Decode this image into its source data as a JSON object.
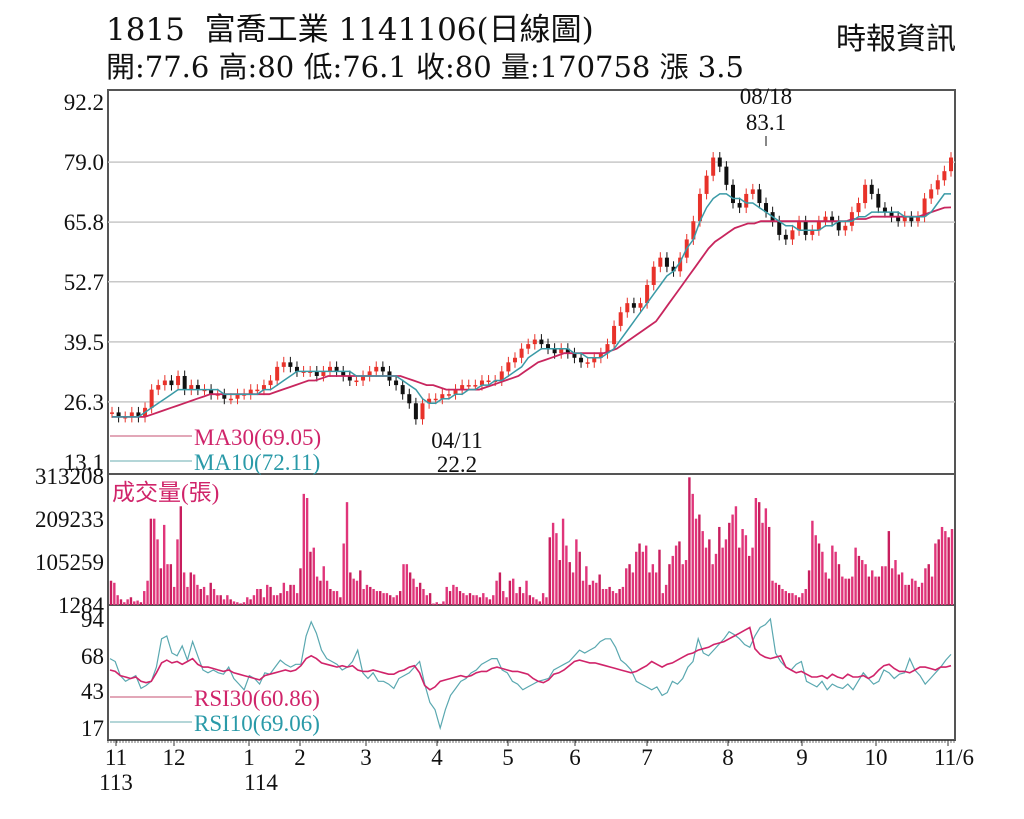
{
  "header": {
    "stock_code": "1815",
    "title": "1815  富喬工業 1141106(日線圖)",
    "ohlc_line": "開:77.6 高:80 低:76.1 收:80 量:170758 漲 3.5",
    "open": "77.6",
    "high": "80",
    "low": "76.1",
    "close": "80",
    "volume": "170758",
    "change": "漲 3.5",
    "source": "時報資訊"
  },
  "colors": {
    "up_candle": "#e8322a",
    "down_candle": "#111111",
    "ma30": "#c8265e",
    "ma10": "#3a9aa6",
    "volume": "#e0357a",
    "rsi30": "#d0246a",
    "rsi10": "#5aa8b0",
    "grid": "#c8c8c8",
    "frame": "#555555"
  },
  "chart_data": [
    {
      "type": "candlestick",
      "title": "1815 富喬工業 1141106(日線圖)",
      "yaxis_ticks": [
        "92.2",
        "79.0",
        "65.8",
        "52.7",
        "39.5",
        "26.3",
        "13.1"
      ],
      "ylim": [
        13.1,
        92.2
      ],
      "annotations": [
        {
          "date": "08/18",
          "value": "83.1",
          "label": "high"
        },
        {
          "date": "04/11",
          "value": "22.2",
          "label": "low"
        }
      ],
      "legend": [
        {
          "name": "MA30",
          "value": "MA30(69.05)"
        },
        {
          "name": "MA10",
          "value": "MA10(72.11)"
        }
      ],
      "x_month_labels": [
        "11",
        "12",
        "1",
        "2",
        "3",
        "4",
        "5",
        "6",
        "7",
        "8",
        "9",
        "10",
        "11/6"
      ],
      "x_year_labels": [
        {
          "month": "11",
          "year": "113"
        },
        {
          "month": "1",
          "year": "114"
        }
      ],
      "close_path": [
        24,
        23,
        23,
        24,
        23,
        25,
        29,
        30,
        31,
        30,
        32,
        29,
        30,
        29,
        29,
        28,
        28,
        27,
        27,
        28,
        28,
        29,
        29,
        30,
        31,
        34,
        35,
        34,
        33,
        33,
        33,
        32,
        33,
        34,
        33,
        32,
        31,
        31,
        32,
        33,
        34,
        33,
        31,
        30,
        28,
        26,
        22.5,
        26,
        27,
        27,
        28,
        28,
        29,
        30,
        30,
        30,
        31,
        31,
        31,
        33,
        35,
        36,
        38,
        39,
        40,
        39,
        38,
        37,
        38,
        37,
        36,
        35,
        35,
        36,
        37,
        39,
        43,
        46,
        48,
        47,
        48,
        52,
        56,
        58,
        56,
        55,
        58,
        62,
        66,
        72,
        76,
        80,
        78,
        74,
        70,
        69,
        72,
        73,
        70,
        68,
        66,
        63,
        62,
        64,
        66,
        63,
        64,
        66,
        67,
        66,
        64,
        65,
        68,
        70,
        74,
        72,
        69,
        68,
        67,
        66,
        67,
        66,
        67,
        71,
        73,
        75,
        77,
        80
      ],
      "ma10_path": [
        23,
        23,
        23,
        23,
        23,
        24,
        25,
        26,
        27,
        28,
        29,
        29,
        29,
        29,
        29,
        29,
        29,
        28,
        28,
        28,
        28,
        28,
        28,
        29,
        29,
        30,
        31,
        32,
        33,
        33,
        33,
        33,
        33,
        33,
        33,
        33,
        33,
        32,
        32,
        32,
        32,
        32,
        32,
        32,
        31,
        30,
        29,
        27,
        26,
        26,
        27,
        27,
        28,
        28,
        29,
        29,
        30,
        30,
        31,
        31,
        32,
        33,
        34,
        36,
        37,
        38,
        38,
        38,
        38,
        38,
        37,
        37,
        36,
        36,
        36,
        37,
        38,
        40,
        42,
        44,
        46,
        48,
        50,
        52,
        54,
        55,
        57,
        60,
        62,
        66,
        69,
        71,
        72,
        72,
        71,
        71,
        70,
        70,
        69,
        68,
        67,
        66,
        65,
        65,
        64,
        64,
        64,
        64,
        65,
        65,
        66,
        66,
        66,
        67,
        67,
        68,
        68,
        68,
        68,
        68,
        67,
        67,
        67,
        67,
        68,
        70,
        72,
        72
      ],
      "ma30_path": [
        23,
        23,
        23,
        23,
        23,
        23,
        23.5,
        24,
        24.5,
        25,
        25.5,
        26,
        26.5,
        27,
        27.5,
        28,
        28,
        28,
        28,
        28,
        28,
        28,
        28,
        28,
        28,
        28.5,
        29,
        29.5,
        30,
        30.5,
        31,
        31,
        31.5,
        32,
        32,
        32,
        32,
        32,
        32,
        32,
        32,
        32,
        32,
        32,
        32,
        31.5,
        31,
        30.5,
        30,
        30,
        29.5,
        29,
        29,
        29,
        29,
        29,
        29,
        29.5,
        30,
        30.5,
        31,
        31.5,
        32,
        33,
        34,
        35,
        35.5,
        36,
        36.5,
        37,
        37,
        37,
        37,
        37,
        37,
        37,
        37.5,
        38,
        39,
        40,
        41,
        42,
        43,
        44,
        46,
        48,
        50,
        52,
        54,
        56,
        58,
        60,
        61.5,
        62.5,
        63.5,
        64.5,
        65,
        65.5,
        65.5,
        66,
        66,
        66,
        66,
        66,
        66,
        66,
        66,
        66,
        66,
        66,
        66,
        66,
        66,
        66.5,
        66.5,
        66.5,
        67,
        67,
        67,
        67,
        67,
        67,
        67,
        67,
        67.5,
        68,
        68.5,
        69,
        69.05
      ]
    },
    {
      "type": "bar",
      "title": "成交量(張)",
      "yaxis_ticks": [
        "313208",
        "209233",
        "105259",
        "1284"
      ],
      "ylim": [
        1284,
        313208
      ],
      "values": [
        60000,
        55000,
        25000,
        15000,
        8000,
        15000,
        20000,
        10000,
        12000,
        8000,
        35000,
        60000,
        210000,
        210000,
        160000,
        90000,
        195000,
        100000,
        100000,
        45000,
        160000,
        240000,
        80000,
        45000,
        80000,
        75000,
        50000,
        40000,
        45000,
        25000,
        55000,
        40000,
        25000,
        25000,
        15000,
        25000,
        15000,
        10000,
        8000,
        5000,
        8000,
        20000,
        15000,
        25000,
        40000,
        40000,
        20000,
        50000,
        45000,
        25000,
        25000,
        30000,
        55000,
        35000,
        50000,
        50000,
        30000,
        90000,
        270000,
        260000,
        130000,
        140000,
        70000,
        60000,
        95000,
        60000,
        40000,
        35000,
        35000,
        20000,
        150000,
        250000,
        80000,
        65000,
        60000,
        85000,
        40000,
        50000,
        45000,
        40000,
        35000,
        35000,
        30000,
        30000,
        25000,
        20000,
        25000,
        35000,
        100000,
        100000,
        80000,
        65000,
        45000,
        55000,
        40000,
        25000,
        30000,
        5000,
        8000,
        4000,
        10000,
        45000,
        35000,
        50000,
        45000,
        35000,
        30000,
        25000,
        30000,
        25000,
        25000,
        20000,
        30000,
        20000,
        15000,
        25000,
        60000,
        80000,
        35000,
        20000,
        60000,
        65000,
        30000,
        45000,
        30000,
        60000,
        25000,
        20000,
        15000,
        10000,
        30000,
        20000,
        165000,
        200000,
        175000,
        110000,
        210000,
        145000,
        105000,
        80000,
        160000,
        130000,
        60000,
        95000,
        50000,
        60000,
        55000,
        75000,
        40000,
        40000,
        45000,
        35000,
        30000,
        40000,
        45000,
        90000,
        100000,
        80000,
        130000,
        150000,
        130000,
        145000,
        80000,
        100000,
        80000,
        135000,
        30000,
        50000,
        100000,
        120000,
        145000,
        155000,
        100000,
        110000,
        310000,
        270000,
        210000,
        220000,
        180000,
        140000,
        160000,
        100000,
        125000,
        190000,
        140000,
        160000,
        200000,
        220000,
        240000,
        140000,
        185000,
        170000,
        120000,
        140000,
        260000,
        250000,
        200000,
        235000,
        190000,
        60000,
        55000,
        50000,
        40000,
        35000,
        30000,
        30000,
        25000,
        20000,
        30000,
        40000,
        85000,
        205000,
        170000,
        150000,
        130000,
        80000,
        65000,
        145000,
        130000,
        100000,
        70000,
        65000,
        65000,
        70000,
        140000,
        120000,
        110000,
        100000,
        70000,
        85000,
        70000,
        70000,
        95000,
        95000,
        180000,
        90000,
        110000,
        75000,
        80000,
        50000,
        50000,
        65000,
        60000,
        45000,
        55000,
        90000,
        100000,
        70000,
        150000,
        160000,
        190000,
        180000,
        165000,
        185000
      ]
    },
    {
      "type": "line",
      "title": "RSI",
      "yaxis_ticks": [
        "94",
        "68",
        "43",
        "17"
      ],
      "ylim": [
        17,
        94
      ],
      "legend": [
        {
          "name": "RSI30",
          "value": "RSI30(60.86)"
        },
        {
          "name": "RSI10",
          "value": "RSI10(69.06)"
        }
      ],
      "rsi30_path": [
        58,
        57,
        54,
        53,
        52,
        53,
        50,
        49,
        50,
        56,
        63,
        65,
        63,
        64,
        62,
        64,
        66,
        62,
        60,
        60,
        59,
        58,
        57,
        58,
        56,
        55,
        54,
        53,
        52,
        51,
        54,
        55,
        56,
        57,
        58,
        57,
        58,
        61,
        66,
        68,
        66,
        63,
        62,
        61,
        60,
        61,
        60,
        61,
        58,
        57,
        57,
        58,
        57,
        56,
        55,
        55,
        57,
        58,
        60,
        61,
        56,
        47,
        44,
        46,
        50,
        51,
        52,
        53,
        54,
        53,
        54,
        56,
        57,
        57,
        59,
        60,
        59,
        58,
        57,
        57,
        56,
        55,
        52,
        50,
        49,
        51,
        55,
        56,
        58,
        61,
        64,
        65,
        64,
        63,
        63,
        62,
        61,
        60,
        59,
        58,
        57,
        56,
        57,
        59,
        61,
        64,
        62,
        60,
        62,
        63,
        65,
        67,
        69,
        70,
        72,
        73,
        74,
        76,
        77,
        78,
        80,
        82,
        84,
        86,
        88,
        73,
        69,
        67,
        66,
        67,
        68,
        60,
        58,
        56,
        57,
        55,
        53,
        53,
        54,
        52,
        55,
        53,
        52,
        55,
        53,
        53,
        54,
        52,
        54,
        58,
        61,
        62,
        59,
        57,
        57,
        56,
        58,
        60,
        60,
        59,
        58,
        60,
        60,
        61
      ],
      "rsi10_path": [
        66,
        64,
        54,
        50,
        52,
        54,
        45,
        47,
        50,
        60,
        80,
        82,
        70,
        68,
        75,
        65,
        78,
        68,
        58,
        56,
        58,
        56,
        55,
        60,
        52,
        48,
        44,
        54,
        52,
        48,
        56,
        55,
        60,
        65,
        62,
        60,
        62,
        62,
        82,
        92,
        84,
        72,
        66,
        64,
        62,
        58,
        60,
        64,
        72,
        56,
        52,
        56,
        50,
        50,
        48,
        45,
        52,
        54,
        56,
        60,
        64,
        48,
        35,
        30,
        17,
        30,
        40,
        45,
        50,
        52,
        56,
        58,
        62,
        64,
        66,
        66,
        58,
        56,
        50,
        48,
        44,
        46,
        48,
        50,
        51,
        52,
        58,
        60,
        62,
        64,
        68,
        72,
        70,
        72,
        74,
        78,
        80,
        80,
        74,
        65,
        62,
        58,
        50,
        48,
        46,
        44,
        46,
        40,
        42,
        50,
        48,
        52,
        60,
        64,
        80,
        70,
        68,
        72,
        76,
        80,
        85,
        83,
        80,
        76,
        74,
        82,
        88,
        90,
        94,
        70,
        64,
        60,
        58,
        62,
        64,
        50,
        48,
        46,
        50,
        44,
        48,
        46,
        45,
        48,
        44,
        50,
        56,
        52,
        48,
        50,
        58,
        56,
        52,
        55,
        56,
        66,
        58,
        54,
        48,
        52,
        56,
        60,
        65,
        69
      ]
    }
  ]
}
